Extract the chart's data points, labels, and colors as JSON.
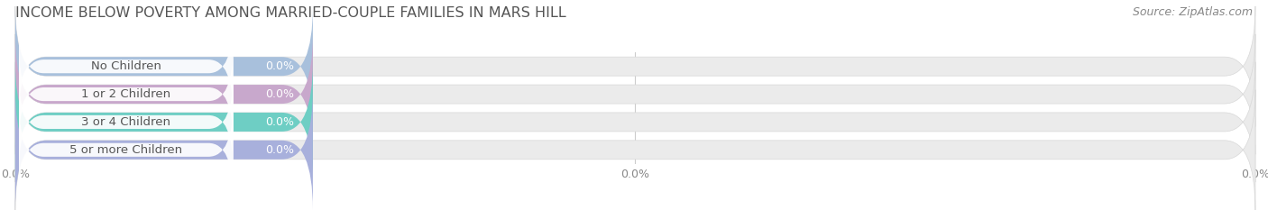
{
  "title": "INCOME BELOW POVERTY AMONG MARRIED-COUPLE FAMILIES IN MARS HILL",
  "source": "Source: ZipAtlas.com",
  "categories": [
    "No Children",
    "1 or 2 Children",
    "3 or 4 Children",
    "5 or more Children"
  ],
  "values": [
    0.0,
    0.0,
    0.0,
    0.0
  ],
  "bar_colors": [
    "#a8c0dc",
    "#c8a8cc",
    "#6ecec4",
    "#a8b0dc"
  ],
  "background_color": "#ffffff",
  "bar_bg_color": "#ebebeb",
  "bar_height": 0.68,
  "xlim": [
    0,
    100
  ],
  "title_fontsize": 11.5,
  "label_fontsize": 9.5,
  "value_fontsize": 9,
  "source_fontsize": 9,
  "tick_label_fontsize": 9,
  "xticks": [
    0,
    50,
    100
  ],
  "xtick_labels": [
    "0.0%",
    "0.0%",
    "0.0%"
  ],
  "colored_bar_width": 24
}
